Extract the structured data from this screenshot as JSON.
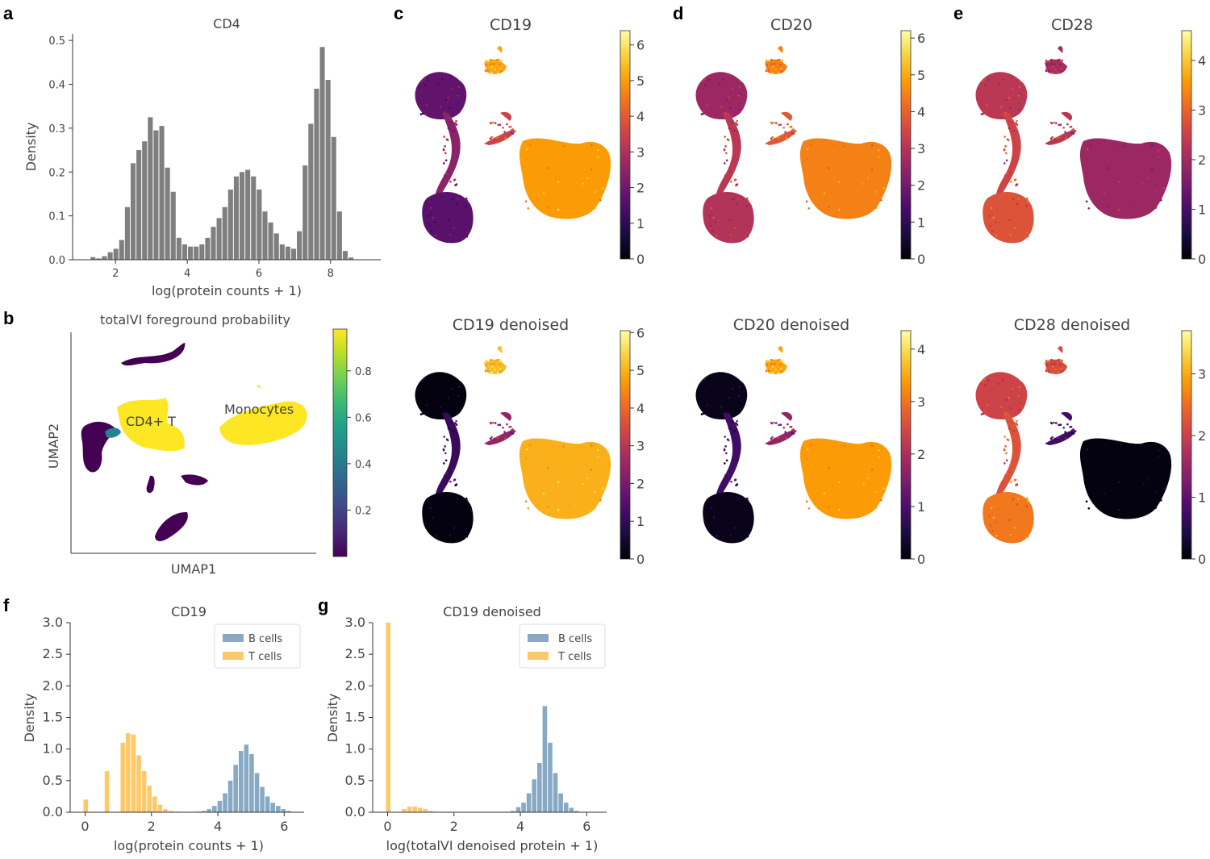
{
  "panel_letters": {
    "a": "a",
    "b": "b",
    "c": "c",
    "d": "d",
    "e": "e",
    "f": "f",
    "g": "g"
  },
  "colors": {
    "hist_gray": "#7f7f7f",
    "b_cells": "#87a9c4",
    "t_cells": "#fbc86a",
    "inferno": [
      "#000004",
      "#1b0c41",
      "#4a0c6b",
      "#781c6d",
      "#a52c60",
      "#cf4446",
      "#ed6925",
      "#fb9b06",
      "#f7d13d",
      "#fcffa4"
    ],
    "viridis": [
      "#440154",
      "#482878",
      "#3e4989",
      "#31688e",
      "#26828e",
      "#1f9e89",
      "#35b779",
      "#6ece58",
      "#b5de2b",
      "#fde725"
    ]
  },
  "panel_a": {
    "chart_data": {
      "type": "bar",
      "title": "CD4",
      "xlabel": "log(protein counts + 1)",
      "ylabel": "Density",
      "xlim": [
        0.8,
        9.4
      ],
      "ylim": [
        0,
        0.515
      ],
      "xticks": [
        2,
        4,
        6,
        8
      ],
      "yticks": [
        0.0,
        0.1,
        0.2,
        0.3,
        0.4,
        0.5
      ],
      "ytick_labels": [
        "0.0",
        "0.1",
        "0.2",
        "0.3",
        "0.4",
        "0.5"
      ],
      "bin_width": 0.16,
      "bin_starts": [
        1.3,
        1.46,
        1.62,
        1.78,
        1.94,
        2.1,
        2.26,
        2.42,
        2.58,
        2.74,
        2.9,
        3.06,
        3.22,
        3.38,
        3.54,
        3.7,
        3.86,
        4.02,
        4.18,
        4.34,
        4.5,
        4.66,
        4.82,
        4.98,
        5.14,
        5.3,
        5.46,
        5.62,
        5.78,
        5.94,
        6.1,
        6.26,
        6.42,
        6.58,
        6.74,
        6.9,
        7.06,
        7.22,
        7.38,
        7.54,
        7.7,
        7.86,
        8.02,
        8.18,
        8.34,
        8.5
      ],
      "values": [
        0.006,
        0.003,
        0.008,
        0.017,
        0.025,
        0.045,
        0.12,
        0.22,
        0.25,
        0.27,
        0.325,
        0.295,
        0.305,
        0.21,
        0.155,
        0.05,
        0.035,
        0.03,
        0.03,
        0.035,
        0.05,
        0.075,
        0.095,
        0.12,
        0.16,
        0.19,
        0.2,
        0.205,
        0.19,
        0.16,
        0.11,
        0.085,
        0.06,
        0.035,
        0.03,
        0.025,
        0.065,
        0.215,
        0.31,
        0.39,
        0.485,
        0.41,
        0.28,
        0.11,
        0.02,
        0.005
      ]
    }
  },
  "panel_b": {
    "title": "totalVI foreground probability",
    "xlabel": "UMAP1",
    "ylabel": "UMAP2",
    "annotations": [
      "CD4+ T",
      "Monocytes"
    ],
    "colorbar": {
      "ticks": [
        "0.2",
        "0.4",
        "0.6",
        "0.8"
      ],
      "values": [
        0.2,
        0.4,
        0.6,
        0.8
      ],
      "range": [
        0.0,
        0.98
      ]
    }
  },
  "umap_panels": [
    {
      "id": "c-top",
      "title": "CD19",
      "colorbar": {
        "ticks": [
          "0",
          "1",
          "2",
          "3",
          "4",
          "5",
          "6"
        ],
        "max": 6.4
      }
    },
    {
      "id": "d-top",
      "title": "CD20",
      "colorbar": {
        "ticks": [
          "0",
          "1",
          "2",
          "3",
          "4",
          "5",
          "6"
        ],
        "max": 6.2
      }
    },
    {
      "id": "e-top",
      "title": "CD28",
      "colorbar": {
        "ticks": [
          "0",
          "1",
          "2",
          "3",
          "4"
        ],
        "max": 4.6
      }
    },
    {
      "id": "c-bottom",
      "title": "CD19 denoised",
      "colorbar": {
        "ticks": [
          "0",
          "1",
          "2",
          "3",
          "4",
          "5",
          "6"
        ],
        "max": 6.05
      }
    },
    {
      "id": "d-bottom",
      "title": "CD20 denoised",
      "colorbar": {
        "ticks": [
          "0",
          "1",
          "2",
          "3",
          "4"
        ],
        "max": 4.35
      }
    },
    {
      "id": "e-bottom",
      "title": "CD28 denoised",
      "colorbar": {
        "ticks": [
          "0",
          "1",
          "2",
          "3"
        ],
        "max": 3.7
      }
    }
  ],
  "panel_f": {
    "chart_data": {
      "type": "bar",
      "title": "CD19",
      "xlabel": "log(protein counts + 1)",
      "ylabel": "Density",
      "xlim": [
        -0.45,
        6.6
      ],
      "ylim": [
        0,
        3.0
      ],
      "xticks": [
        0,
        2,
        4,
        6
      ],
      "yticks": [
        0.0,
        0.5,
        1.0,
        1.5,
        2.0,
        2.5,
        3.0
      ],
      "ytick_labels": [
        "0.0",
        "0.5",
        "1.0",
        "1.5",
        "2.0",
        "2.5",
        "3.0"
      ],
      "bin_width": 0.16,
      "legend": [
        "B cells",
        "T cells"
      ],
      "series": [
        {
          "name": "T cells",
          "bin_starts": [
            -0.05,
            0.11,
            0.27,
            0.43,
            0.59,
            0.75,
            0.91,
            1.07,
            1.23,
            1.39,
            1.55,
            1.71,
            1.87,
            2.03,
            2.19,
            2.35,
            2.51,
            2.67
          ],
          "values": [
            0.2,
            0.0,
            0.0,
            0.0,
            0.65,
            0.0,
            0.0,
            1.1,
            1.25,
            1.23,
            0.9,
            0.65,
            0.42,
            0.25,
            0.12,
            0.05,
            0.02,
            0.01
          ]
        },
        {
          "name": "B cells",
          "bin_starts": [
            3.35,
            3.51,
            3.67,
            3.83,
            3.99,
            4.15,
            4.31,
            4.47,
            4.63,
            4.79,
            4.95,
            5.11,
            5.27,
            5.43,
            5.59,
            5.75,
            5.91,
            6.07
          ],
          "values": [
            0.01,
            0.02,
            0.05,
            0.1,
            0.18,
            0.3,
            0.5,
            0.75,
            0.97,
            1.07,
            0.92,
            0.62,
            0.4,
            0.25,
            0.15,
            0.1,
            0.05,
            0.02
          ]
        }
      ]
    }
  },
  "panel_g": {
    "chart_data": {
      "type": "bar",
      "title": "CD19 denoised",
      "xlabel": "log(totalVI denoised protein + 1)",
      "ylabel": "Density",
      "xlim": [
        -0.45,
        6.6
      ],
      "ylim": [
        0,
        3.0
      ],
      "xticks": [
        0,
        2,
        4,
        6
      ],
      "yticks": [
        0.0,
        0.5,
        1.0,
        1.5,
        2.0,
        2.5,
        3.0
      ],
      "ytick_labels": [
        "0.0",
        "0.5",
        "1.0",
        "1.5",
        "2.0",
        "2.5",
        "3.0"
      ],
      "bin_width": 0.16,
      "legend": [
        "B cells",
        "T cells"
      ],
      "series": [
        {
          "name": "T cells",
          "bin_starts": [
            -0.05,
            0.11,
            0.27,
            0.43,
            0.59,
            0.75,
            0.91,
            1.07,
            1.23,
            1.39
          ],
          "values": [
            3.02,
            0.0,
            0.0,
            0.05,
            0.09,
            0.09,
            0.07,
            0.05,
            0.02,
            0.01
          ]
        },
        {
          "name": "B cells",
          "bin_starts": [
            3.71,
            3.87,
            4.03,
            4.19,
            4.35,
            4.51,
            4.67,
            4.83,
            4.99,
            5.15,
            5.31,
            5.47,
            5.63
          ],
          "values": [
            0.02,
            0.08,
            0.15,
            0.3,
            0.52,
            0.78,
            1.68,
            1.1,
            0.62,
            0.3,
            0.15,
            0.07,
            0.02
          ]
        }
      ]
    }
  }
}
